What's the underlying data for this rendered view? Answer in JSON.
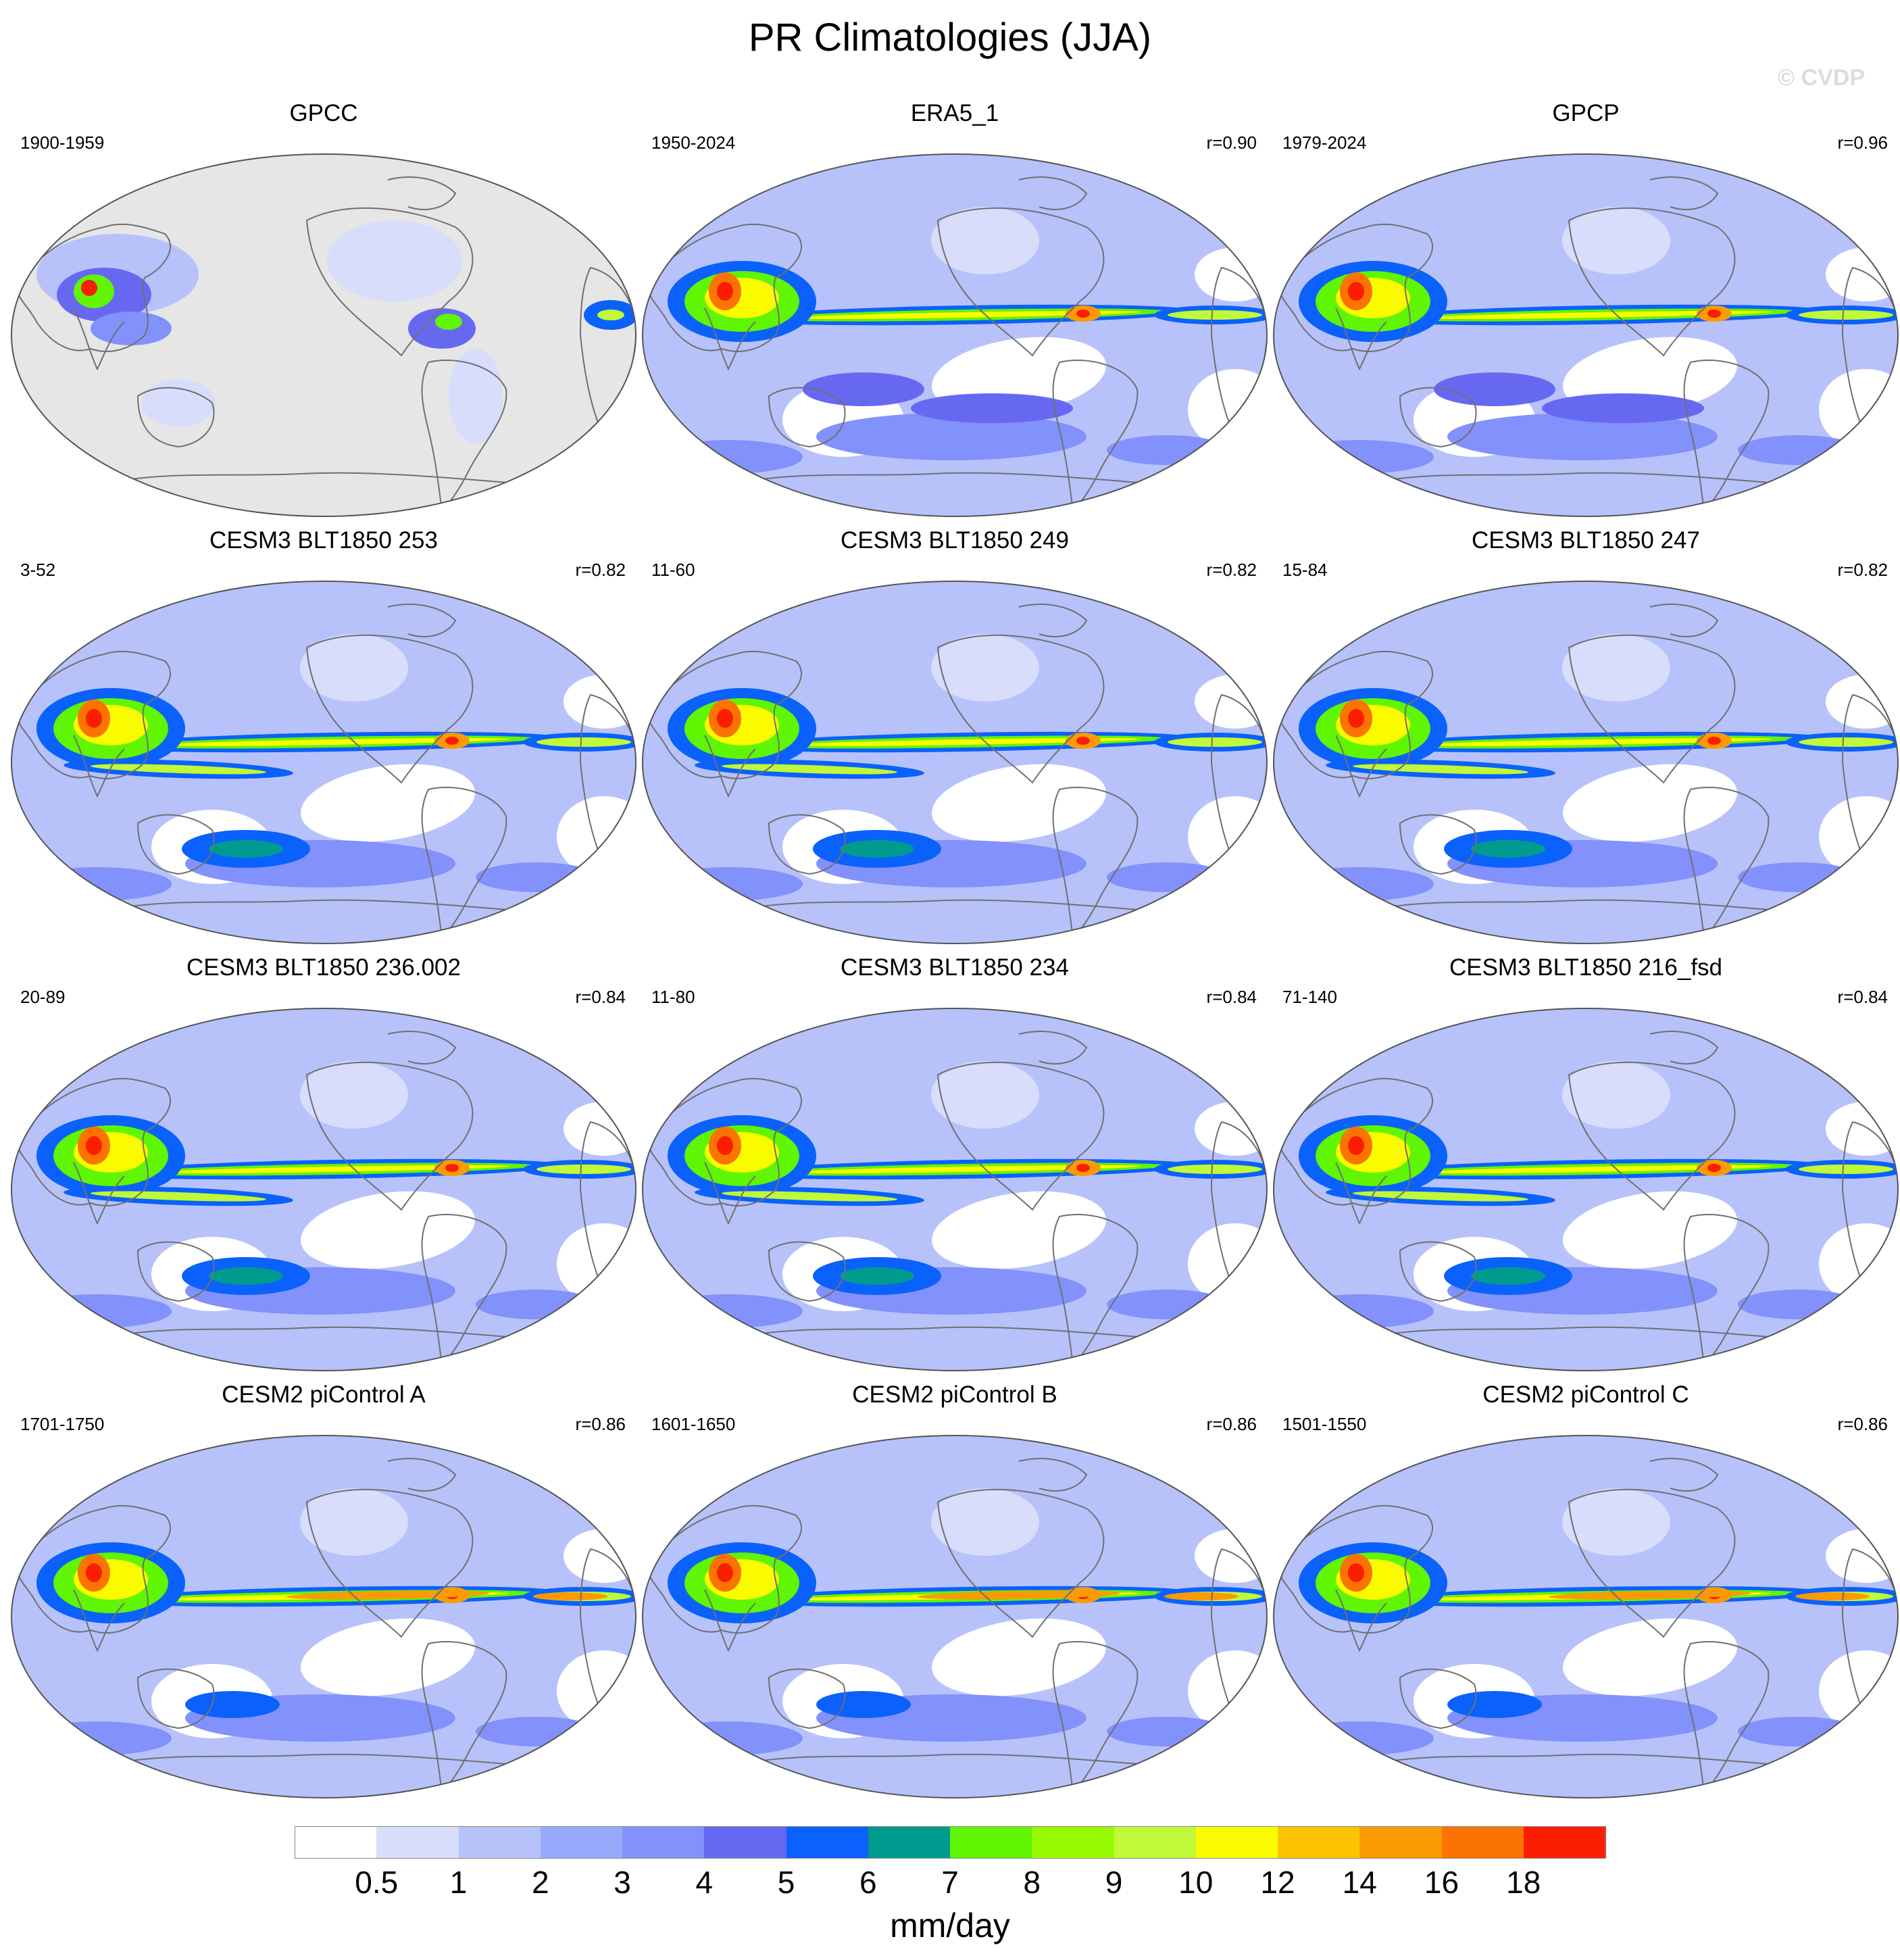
{
  "title": "PR Climatologies (JJA)",
  "watermark": "© CVDP",
  "units": "mm/day",
  "colors": {
    "land_background_obs": "#e6e6e6",
    "coast": "#707070",
    "scale": [
      "#ffffff",
      "#d7ddfb",
      "#b7c2fb",
      "#98a9fb",
      "#8291fb",
      "#6768f2",
      "#0a61fb",
      "#009b8f",
      "#5ff503",
      "#97fb04",
      "#c0f937",
      "#fbfb00",
      "#fbc300",
      "#fb9a02",
      "#fb7300",
      "#fb1d00"
    ]
  },
  "colorbar": {
    "labels": [
      "0.5",
      "1",
      "2",
      "3",
      "4",
      "5",
      "6",
      "7",
      "8",
      "9",
      "10",
      "12",
      "14",
      "16",
      "18"
    ]
  },
  "panels": [
    {
      "name": "GPCC",
      "years": "1900-1959",
      "corr": "",
      "kind": "gpcc"
    },
    {
      "name": "ERA5_1",
      "years": "1950-2024",
      "corr": "r=0.90",
      "kind": "obs"
    },
    {
      "name": "GPCP",
      "years": "1979-2024",
      "corr": "r=0.96",
      "kind": "obs"
    },
    {
      "name": "CESM3 BLT1850 253",
      "years": "3-52",
      "corr": "r=0.82",
      "kind": "cesm3"
    },
    {
      "name": "CESM3 BLT1850 249",
      "years": "11-60",
      "corr": "r=0.82",
      "kind": "cesm3"
    },
    {
      "name": "CESM3 BLT1850 247",
      "years": "15-84",
      "corr": "r=0.82",
      "kind": "cesm3"
    },
    {
      "name": "CESM3 BLT1850 236.002",
      "years": "20-89",
      "corr": "r=0.84",
      "kind": "cesm3"
    },
    {
      "name": "CESM3 BLT1850 234",
      "years": "11-80",
      "corr": "r=0.84",
      "kind": "cesm3"
    },
    {
      "name": "CESM3 BLT1850 216_fsd",
      "years": "71-140",
      "corr": "r=0.84",
      "kind": "cesm3"
    },
    {
      "name": "CESM2 piControl A",
      "years": "1701-1750",
      "corr": "r=0.86",
      "kind": "cesm2"
    },
    {
      "name": "CESM2 piControl B",
      "years": "1601-1650",
      "corr": "r=0.86",
      "kind": "cesm2"
    },
    {
      "name": "CESM2 piControl C",
      "years": "1501-1550",
      "corr": "r=0.86",
      "kind": "cesm2"
    }
  ]
}
